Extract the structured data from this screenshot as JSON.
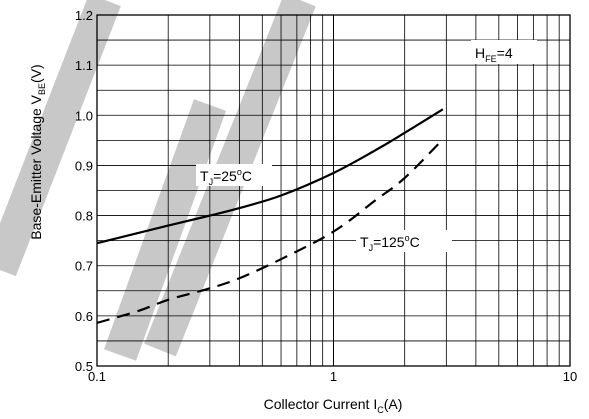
{
  "chart_data": {
    "type": "line",
    "xscale": "log",
    "xlim": [
      0.1,
      10
    ],
    "ylim": [
      0.5,
      1.2
    ],
    "grid": true,
    "xticks": [
      {
        "value": 0.1,
        "label": "0.1"
      },
      {
        "value": 1,
        "label": "1"
      },
      {
        "value": 10,
        "label": "10"
      }
    ],
    "yticks": [
      {
        "value": 0.5,
        "label": "0.5"
      },
      {
        "value": 0.6,
        "label": "0.6"
      },
      {
        "value": 0.7,
        "label": "0.7"
      },
      {
        "value": 0.8,
        "label": "0.8"
      },
      {
        "value": 0.9,
        "label": "0.9"
      },
      {
        "value": 1.0,
        "label": "1.0"
      },
      {
        "value": 1.1,
        "label": "1.1"
      },
      {
        "value": 1.2,
        "label": "1.2"
      }
    ],
    "xlabel": {
      "main": "Collector Current I",
      "sub": "C",
      "tail": "(A)"
    },
    "ylabel": {
      "main": "Base-Emitter Voltage V",
      "sub": "BE",
      "tail": "(V)"
    },
    "annotation": {
      "main": "H",
      "sub": "FE",
      "tail": "=4"
    },
    "series": [
      {
        "label": {
          "main": "T",
          "sub": "J",
          "mid": "=25",
          "sup": "o",
          "tail": "C"
        },
        "style": "solid",
        "color": "#000000",
        "points": [
          [
            0.1,
            0.745
          ],
          [
            0.2,
            0.78
          ],
          [
            0.3,
            0.8
          ],
          [
            0.4,
            0.815
          ],
          [
            0.6,
            0.84
          ],
          [
            1.0,
            0.885
          ],
          [
            1.5,
            0.93
          ],
          [
            2.0,
            0.965
          ],
          [
            2.9,
            1.012
          ]
        ]
      },
      {
        "label": {
          "main": "T",
          "sub": "J",
          "mid": "=125",
          "sup": "o",
          "tail": "C"
        },
        "style": "dashed",
        "color": "#000000",
        "points": [
          [
            0.1,
            0.586
          ],
          [
            0.15,
            0.61
          ],
          [
            0.2,
            0.632
          ],
          [
            0.3,
            0.655
          ],
          [
            0.4,
            0.675
          ],
          [
            0.6,
            0.713
          ],
          [
            1.0,
            0.768
          ],
          [
            1.5,
            0.83
          ],
          [
            2.0,
            0.875
          ],
          [
            2.9,
            0.952
          ]
        ]
      }
    ]
  },
  "colors": {
    "watermark": "#c8c8c8",
    "grid": "#000000",
    "text": "#000000"
  }
}
